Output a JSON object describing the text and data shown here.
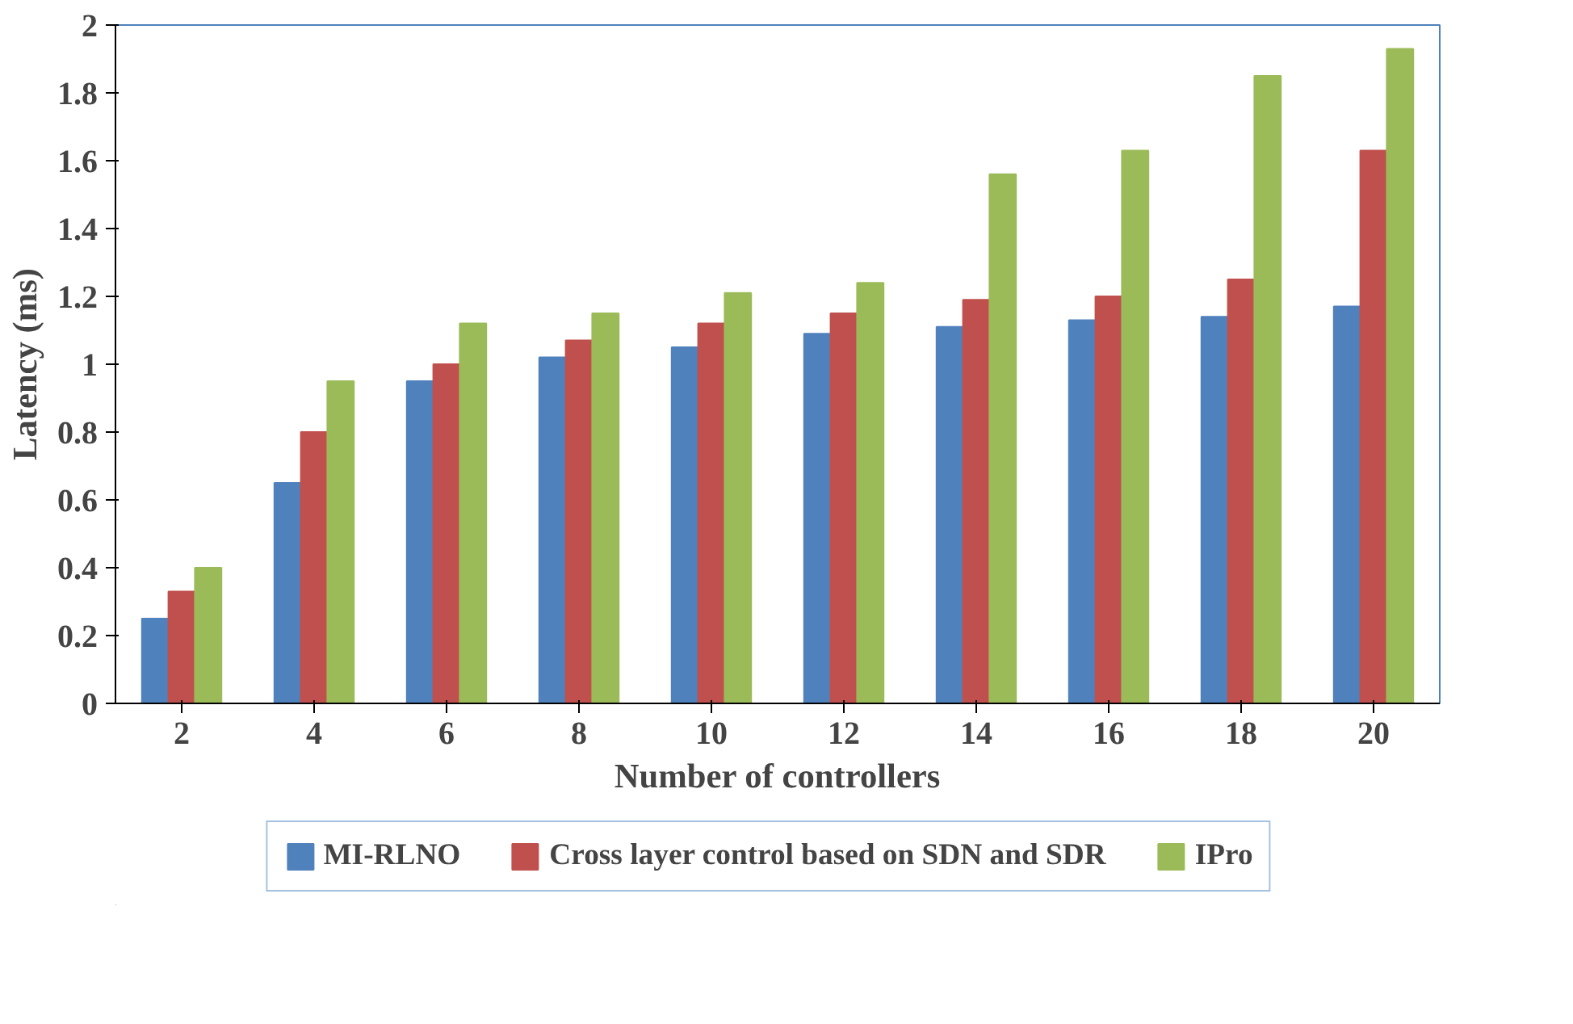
{
  "chart_data": {
    "type": "bar",
    "xlabel": "Number of controllers",
    "ylabel": "Latency (ms)",
    "categories": [
      "2",
      "4",
      "6",
      "8",
      "10",
      "12",
      "14",
      "16",
      "18",
      "20"
    ],
    "series": [
      {
        "name": "MI-RLNO",
        "color": "#4f81bd",
        "values": [
          0.25,
          0.65,
          0.95,
          1.02,
          1.05,
          1.09,
          1.11,
          1.13,
          1.14,
          1.17
        ]
      },
      {
        "name": "Cross layer control based on SDN and SDR",
        "color": "#c0504d",
        "values": [
          0.33,
          0.8,
          1.0,
          1.07,
          1.12,
          1.15,
          1.19,
          1.2,
          1.25,
          1.63
        ]
      },
      {
        "name": "IPro",
        "color": "#9bbb59",
        "values": [
          0.4,
          0.95,
          1.12,
          1.15,
          1.21,
          1.24,
          1.56,
          1.63,
          1.85,
          1.93
        ]
      }
    ],
    "ylim": [
      0,
      2
    ],
    "yticks": [
      0,
      0.2,
      0.4,
      0.6,
      0.8,
      1,
      1.2,
      1.4,
      1.6,
      1.8,
      2
    ],
    "grid": false,
    "legend": "bottom"
  }
}
